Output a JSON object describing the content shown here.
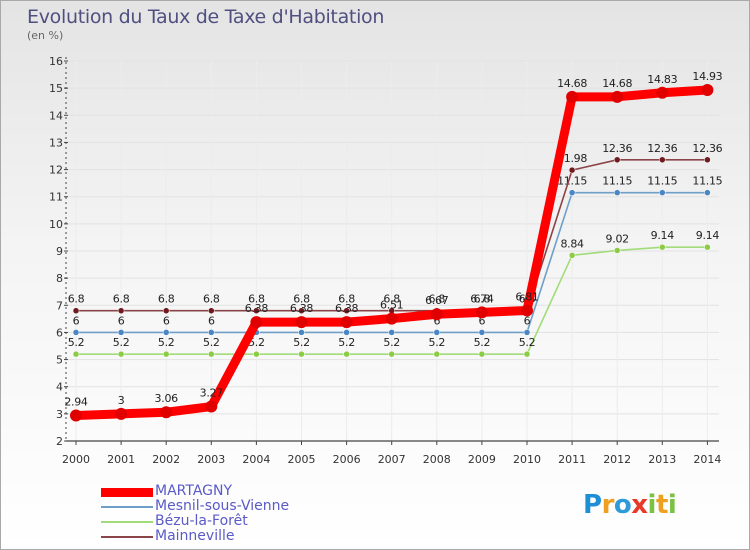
{
  "header": {
    "title": "Evolution du Taux de Taxe d'Habitation",
    "subtitle": "(en %)"
  },
  "colors": {
    "axis": "#444444",
    "grid": "#e2e2e2",
    "label": "#333333"
  },
  "logo": {
    "letters": [
      {
        "char": "P",
        "color": "#1e8fd6"
      },
      {
        "char": "r",
        "color": "#f0a020"
      },
      {
        "char": "o",
        "color": "#2e9ad8"
      },
      {
        "char": "x",
        "color": "#e83a2a"
      },
      {
        "char": "i",
        "color": "#7cc242"
      },
      {
        "char": "t",
        "color": "#f0a020"
      },
      {
        "char": "i",
        "color": "#7cc242"
      }
    ]
  },
  "chart_data": {
    "type": "line",
    "title": "Evolution du Taux de Taxe d'Habitation",
    "ylabel": "(en %)",
    "ylim": [
      2,
      16
    ],
    "yticks": [
      2,
      3,
      4,
      5,
      6,
      7,
      8,
      9,
      10,
      11,
      12,
      13,
      14,
      15,
      16
    ],
    "x": [
      "2000",
      "2001",
      "2002",
      "2003",
      "2004",
      "2005",
      "2006",
      "2007",
      "2008",
      "2009",
      "2010",
      "2011",
      "2012",
      "2013",
      "2014"
    ],
    "grid": true,
    "legend": "bottom-left",
    "series": [
      {
        "name": "MARTAGNY",
        "color": "#ff0000",
        "marker": "#e00000",
        "main": true,
        "values": [
          2.94,
          3,
          3.06,
          3.27,
          6.38,
          6.38,
          6.38,
          6.51,
          6.67,
          6.74,
          6.81,
          14.68,
          14.68,
          14.83,
          14.93
        ],
        "labels": [
          "2.94",
          "3",
          "3.06",
          "3.27",
          "6.38",
          "6.38",
          "6.38",
          "6.51",
          "6.67",
          "6.74",
          "6.81",
          "14.68",
          "14.68",
          "14.83",
          "14.93"
        ]
      },
      {
        "name": "Mesnil-sous-Vienne",
        "color": "#6f9fc8",
        "marker": "#4a86c4",
        "values": [
          6,
          6,
          6,
          6,
          6,
          6,
          6,
          6,
          6,
          6,
          6,
          11.15,
          11.15,
          11.15,
          11.15
        ],
        "labels": [
          "6",
          "6",
          "6",
          "6",
          "6",
          "6",
          "6",
          "6",
          "6",
          "6",
          "6",
          "11.15",
          "11.15",
          "11.15",
          "11.15"
        ]
      },
      {
        "name": "Bézu-la-Forêt",
        "color": "#a2dc7a",
        "marker": "#8ccc44",
        "values": [
          5.2,
          5.2,
          5.2,
          5.2,
          5.2,
          5.2,
          5.2,
          5.2,
          5.2,
          5.2,
          5.2,
          8.84,
          9.02,
          9.14,
          9.14
        ],
        "labels": [
          "5.2",
          "5.2",
          "5.2",
          "5.2",
          "5.2",
          "5.2",
          "5.2",
          "5.2",
          "5.2",
          "5.2",
          "5.2",
          "8.84",
          "9.02",
          "9.14",
          "9.14"
        ]
      },
      {
        "name": "Mainneville",
        "color": "#8b4448",
        "marker": "#6e1a1e",
        "values": [
          6.8,
          6.8,
          6.8,
          6.8,
          6.8,
          6.8,
          6.8,
          6.8,
          6.8,
          6.8,
          6.8,
          11.98,
          12.36,
          12.36,
          12.36
        ],
        "labels": [
          "6.8",
          "6.8",
          "6.8",
          "6.8",
          "6.8",
          "6.8",
          "6.8",
          "6.8",
          "6.8",
          "6.8",
          "6.8",
          "11.98",
          "12.36",
          "12.36",
          "12.36"
        ]
      }
    ]
  }
}
